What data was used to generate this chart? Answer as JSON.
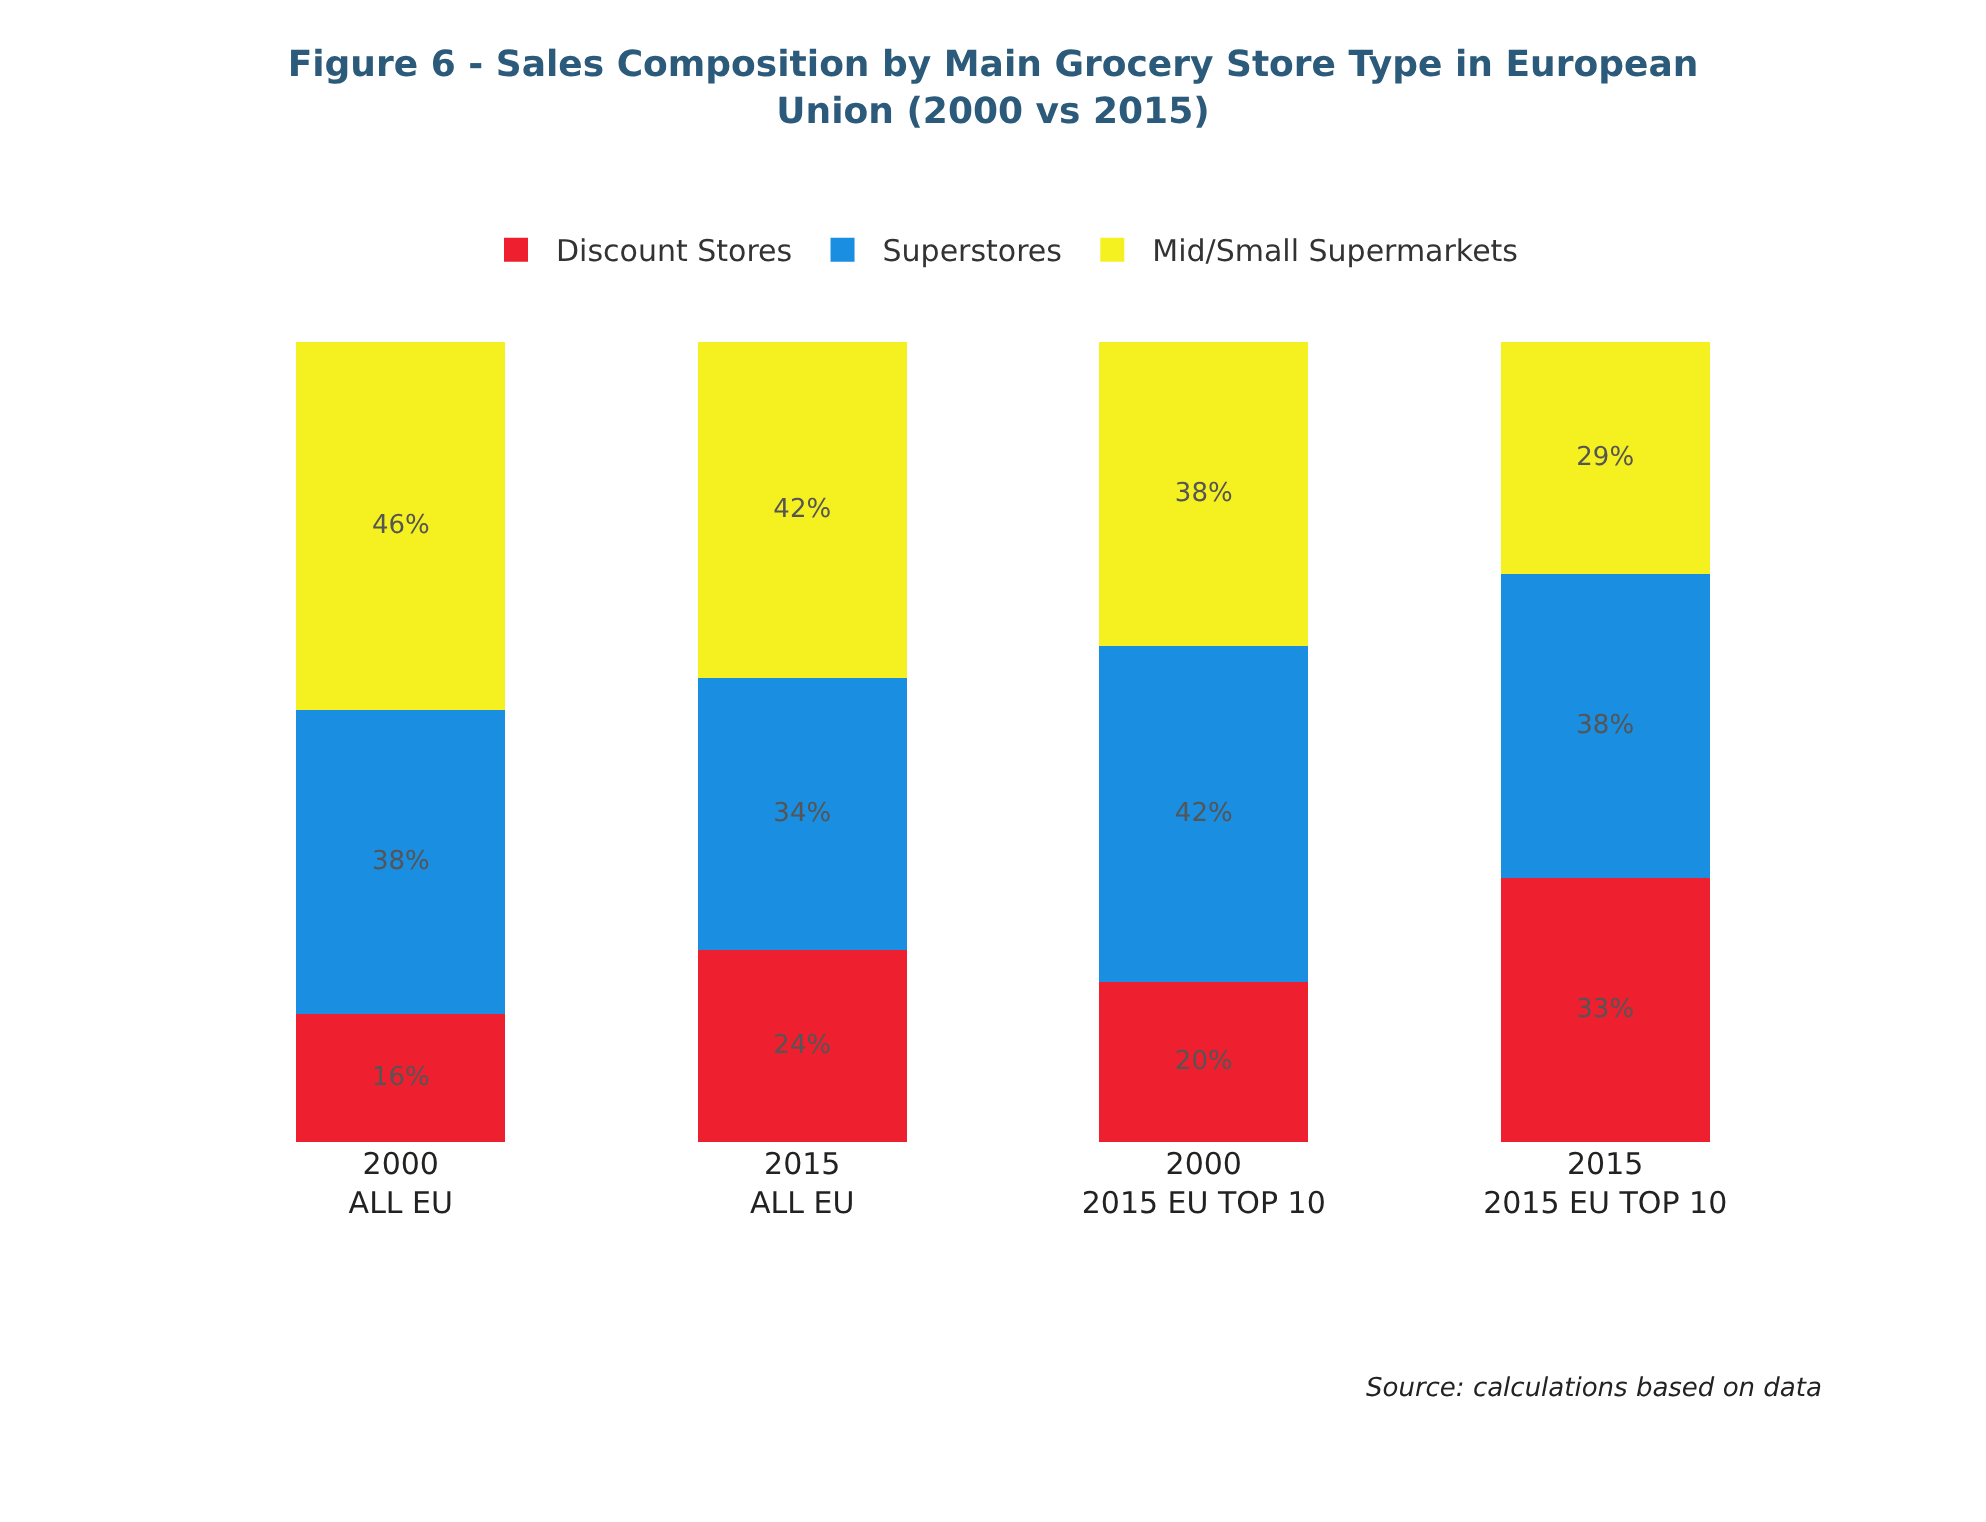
{
  "chart_data": {
    "type": "bar",
    "stacked": true,
    "legend": "top",
    "title": "Figure 6 - Sales Composition by Main Grocery Store Type in European\nUnion (2000 vs 2015)",
    "categories": [
      "2000\nALL EU",
      "2015\nALL EU",
      "2000\n2015 EU TOP 10",
      "2015\n2015 EU TOP 10"
    ],
    "series": [
      {
        "name": "Discount Stores",
        "color": "#ee2030",
        "values": [
          16,
          24,
          20,
          33
        ],
        "value_labels": [
          "16%",
          "24%",
          "20%",
          "33%"
        ]
      },
      {
        "name": "Superstores",
        "color": "#1a8ee0",
        "values": [
          38,
          34,
          42,
          38
        ],
        "value_labels": [
          "38%",
          "34%",
          "42%",
          "38%"
        ]
      },
      {
        "name": "Mid/Small Supermarkets",
        "color": "#f5f020",
        "values": [
          46,
          42,
          38,
          29
        ],
        "value_labels": [
          "46%",
          "42%",
          "38%",
          "29%"
        ]
      }
    ],
    "annotations": [
      "Source: calculations based on data"
    ]
  }
}
